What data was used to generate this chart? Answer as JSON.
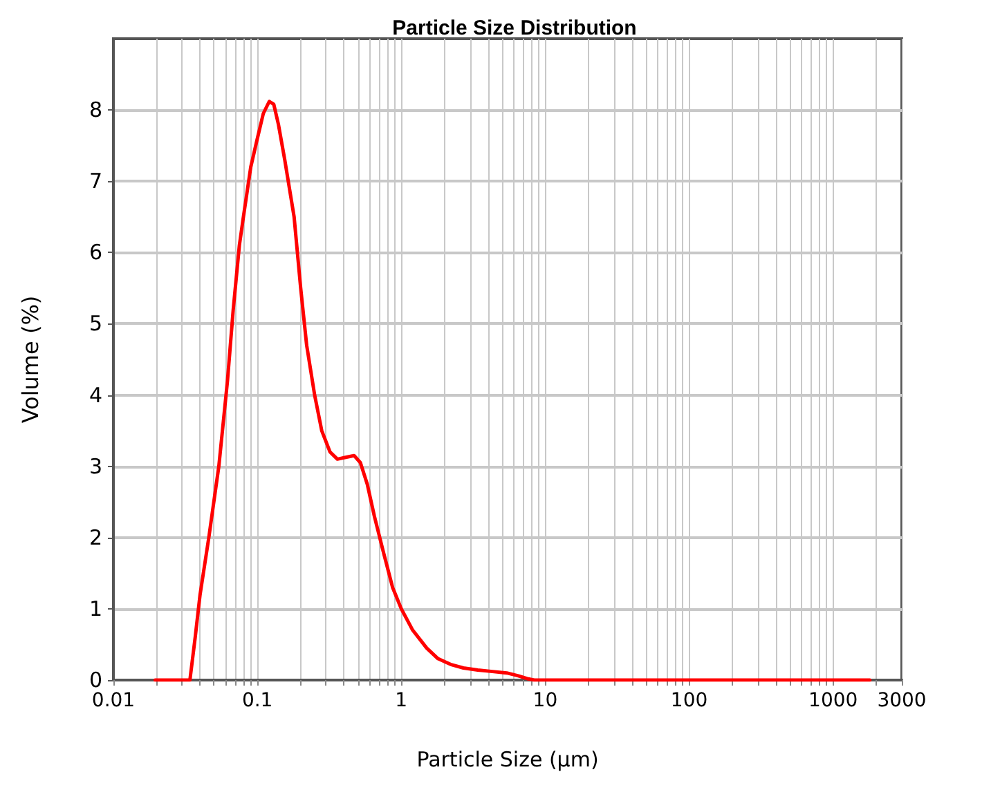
{
  "chart_data": {
    "type": "line",
    "title": "Particle Size Distribution",
    "xlabel": "Particle Size (µm)",
    "ylabel": "Volume (%)",
    "log": "x",
    "grid": true,
    "marker": "none",
    "line_style": "solid",
    "xlim": [
      0.01,
      3000
    ],
    "ylim": [
      0,
      9
    ],
    "xticks": [
      0.01,
      {
        "value": 0.02,
        "label": null
      },
      {
        "value": 0.03,
        "label": null
      },
      {
        "value": 0.04,
        "label": null
      },
      {
        "value": 0.05,
        "label": null
      },
      {
        "value": 0.06,
        "label": null
      },
      {
        "value": 0.07,
        "label": null
      },
      {
        "value": 0.08,
        "label": null
      },
      {
        "value": 0.09,
        "label": null
      },
      0.1,
      {
        "value": 0.2,
        "label": null
      },
      {
        "value": 0.3,
        "label": null
      },
      {
        "value": 0.4,
        "label": null
      },
      {
        "value": 0.5,
        "label": null
      },
      {
        "value": 0.6,
        "label": null
      },
      {
        "value": 0.7,
        "label": null
      },
      {
        "value": 0.8,
        "label": null
      },
      {
        "value": 0.9,
        "label": null
      },
      1,
      {
        "value": 2,
        "label": null
      },
      {
        "value": 3,
        "label": null
      },
      {
        "value": 4,
        "label": null
      },
      {
        "value": 5,
        "label": null
      },
      {
        "value": 6,
        "label": null
      },
      {
        "value": 7,
        "label": null
      },
      {
        "value": 8,
        "label": null
      },
      {
        "value": 9,
        "label": null
      },
      10,
      {
        "value": 20,
        "label": null
      },
      {
        "value": 30,
        "label": null
      },
      {
        "value": 40,
        "label": null
      },
      {
        "value": 50,
        "label": null
      },
      {
        "value": 60,
        "label": null
      },
      {
        "value": 70,
        "label": null
      },
      {
        "value": 80,
        "label": null
      },
      {
        "value": 90,
        "label": null
      },
      100,
      {
        "value": 200,
        "label": null
      },
      {
        "value": 300,
        "label": null
      },
      {
        "value": 400,
        "label": null
      },
      {
        "value": 500,
        "label": null
      },
      {
        "value": 600,
        "label": null
      },
      {
        "value": 700,
        "label": null
      },
      {
        "value": 800,
        "label": null
      },
      {
        "value": 900,
        "label": null
      },
      1000,
      {
        "value": 2000,
        "label": null
      },
      3000
    ],
    "yticks": [
      0,
      1,
      2,
      3,
      4,
      5,
      6,
      7,
      8
    ],
    "series": [
      {
        "color": "#ff0000",
        "x": [
          0.0195,
          0.034,
          0.037,
          0.04,
          0.046,
          0.054,
          0.062,
          0.068,
          0.075,
          0.08,
          0.09,
          0.1,
          0.11,
          0.121,
          0.13,
          0.14,
          0.155,
          0.18,
          0.2,
          0.22,
          0.25,
          0.28,
          0.32,
          0.36,
          0.4,
          0.47,
          0.52,
          0.58,
          0.65,
          0.75,
          0.87,
          1.0,
          1.2,
          1.5,
          1.8,
          2.2,
          2.7,
          3.4,
          4.3,
          5.4,
          6.5,
          7.5,
          8.4,
          100,
          1000,
          1800
        ],
        "values": [
          0,
          0,
          0.6,
          1.2,
          2.0,
          3.0,
          4.2,
          5.2,
          6.1,
          6.5,
          7.2,
          7.6,
          7.95,
          8.12,
          8.08,
          7.8,
          7.3,
          6.5,
          5.5,
          4.7,
          4.0,
          3.5,
          3.2,
          3.1,
          3.12,
          3.15,
          3.05,
          2.75,
          2.3,
          1.8,
          1.3,
          1.0,
          0.7,
          0.45,
          0.3,
          0.22,
          0.17,
          0.14,
          0.12,
          0.1,
          0.06,
          0.02,
          0,
          0,
          0,
          0
        ]
      }
    ]
  }
}
